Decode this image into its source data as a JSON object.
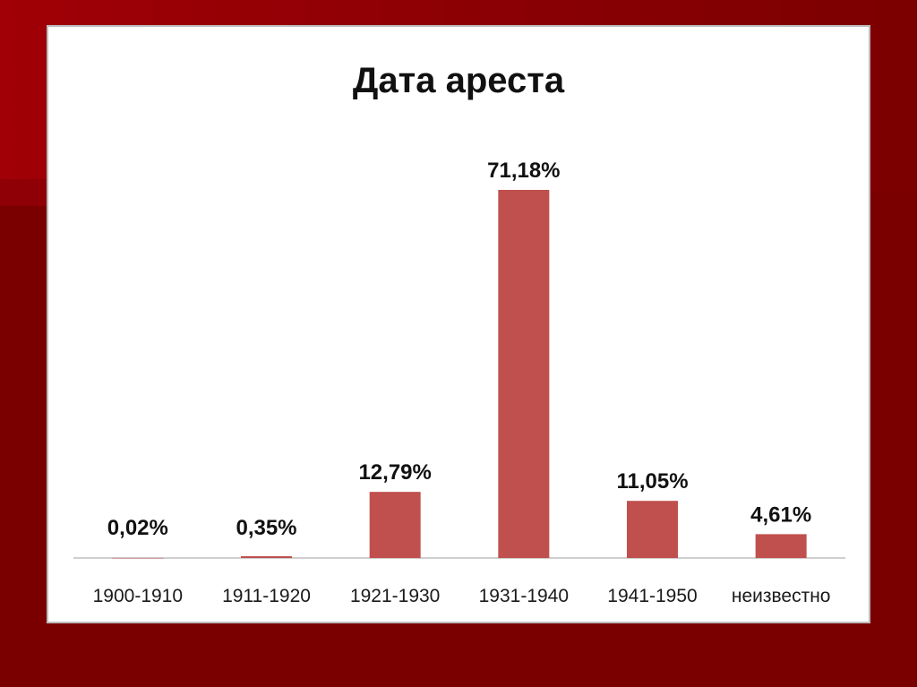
{
  "colors": {
    "bar": "#c0504d",
    "axis": "#bfbfbf",
    "label": "#111111",
    "tick": "#1a1a1a"
  },
  "chart_data": {
    "type": "bar",
    "title": "Дата ареста",
    "categories": [
      "1900-1910",
      "1911-1920",
      "1921-1930",
      "1931-1940",
      "1941-1950",
      "неизвестно"
    ],
    "values": [
      0.02,
      0.35,
      12.79,
      71.18,
      11.05,
      4.61
    ],
    "data_labels": [
      "0,02%",
      "0,35%",
      "12,79%",
      "71,18%",
      "11,05%",
      "4,61%"
    ],
    "xlabel": "",
    "ylabel": "",
    "ylim": [
      0,
      71.18
    ],
    "grid": false,
    "legend": "none"
  }
}
